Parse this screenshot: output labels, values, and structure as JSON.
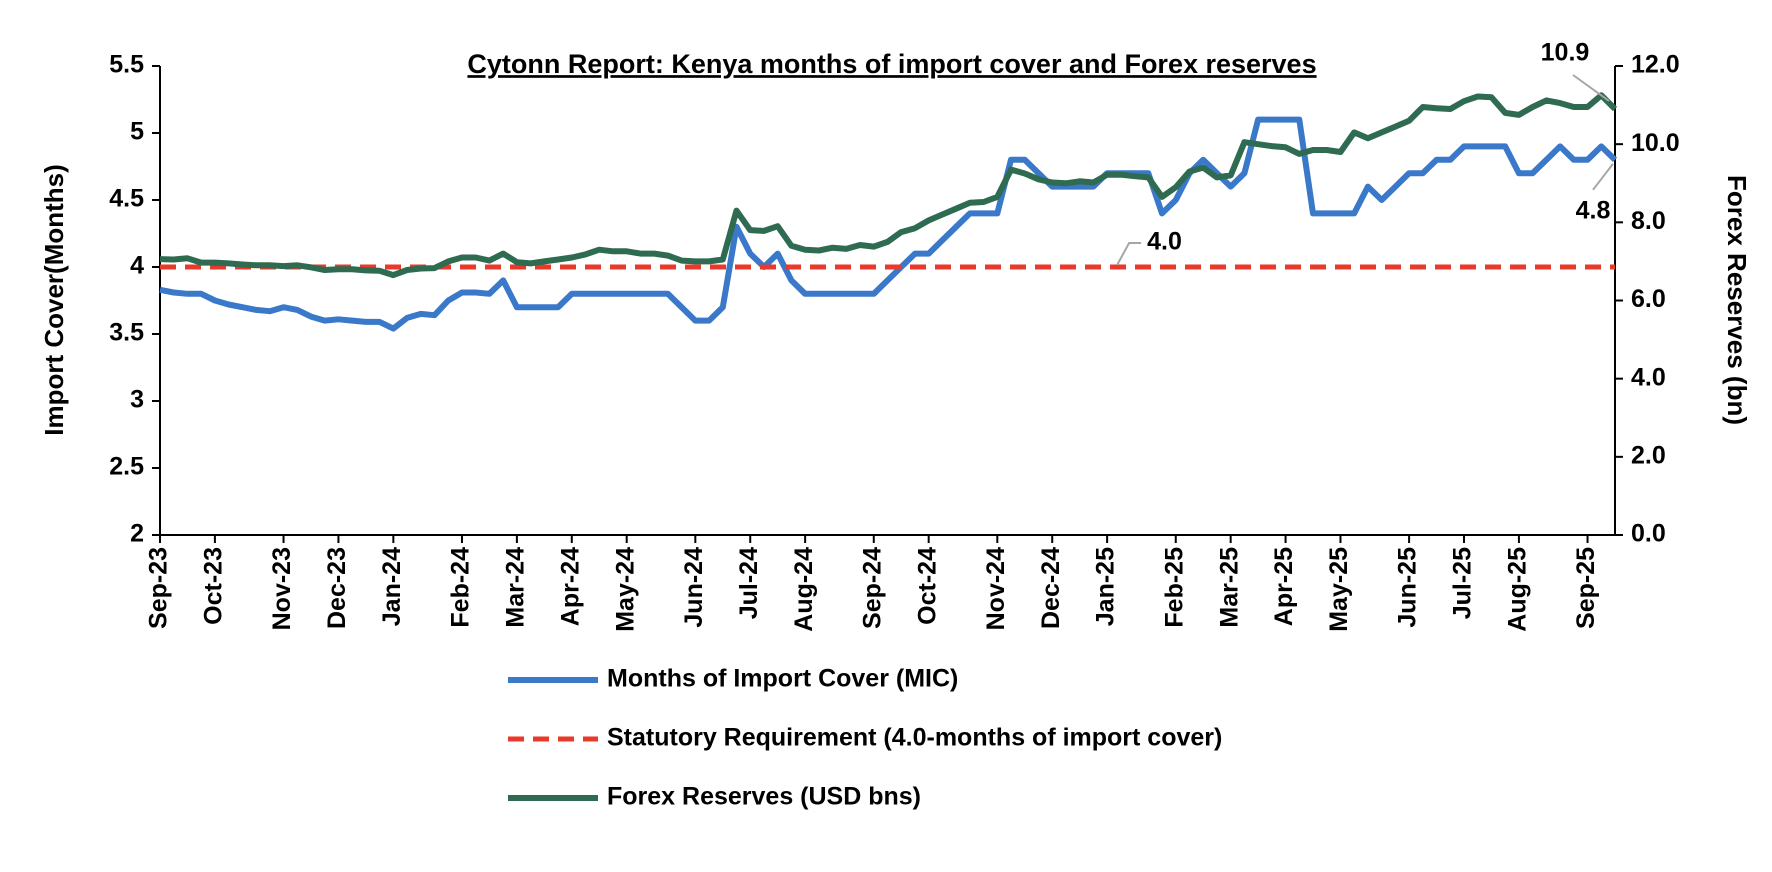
{
  "chart_data": {
    "type": "line",
    "title": "Cytonn Report: Kenya months of import cover and Forex reserves",
    "y_label": "Import Cover(Months)",
    "y2_label": "Forex Reserves (bn)",
    "categories": [
      "Sep-23",
      null,
      null,
      null,
      "Oct-23",
      null,
      null,
      null,
      null,
      "Nov-23",
      null,
      null,
      null,
      "Dec-23",
      null,
      null,
      null,
      "Jan-24",
      null,
      null,
      null,
      null,
      "Feb-24",
      null,
      null,
      null,
      "Mar-24",
      null,
      null,
      null,
      "Apr-24",
      null,
      null,
      null,
      "May-24",
      null,
      null,
      null,
      null,
      "Jun-24",
      null,
      null,
      null,
      "Jul-24",
      null,
      null,
      null,
      "Aug-24",
      null,
      null,
      null,
      null,
      "Sep-24",
      null,
      null,
      null,
      "Oct-24",
      null,
      null,
      null,
      null,
      "Nov-24",
      null,
      null,
      null,
      "Dec-24",
      null,
      null,
      null,
      "Jan-25",
      null,
      null,
      null,
      null,
      "Feb-25",
      null,
      null,
      null,
      "Mar-25",
      null,
      null,
      null,
      "Apr-25",
      null,
      null,
      null,
      "May-25",
      null,
      null,
      null,
      null,
      "Jun-25",
      null,
      null,
      null,
      "Jul-25",
      null,
      null,
      null,
      "Aug-25",
      null,
      null,
      null,
      null,
      "Sep-25",
      null,
      null
    ],
    "series": [
      {
        "name": "Months of Import Cover (MIC)",
        "color": "#3a78c9",
        "axis": "y",
        "values": [
          3.83,
          3.81,
          3.8,
          3.8,
          3.75,
          3.72,
          3.7,
          3.68,
          3.67,
          3.7,
          3.68,
          3.63,
          3.6,
          3.61,
          3.6,
          3.59,
          3.59,
          3.54,
          3.62,
          3.65,
          3.64,
          3.75,
          3.81,
          3.81,
          3.8,
          3.9,
          3.7,
          3.7,
          3.7,
          3.7,
          3.8,
          3.8,
          3.8,
          3.8,
          3.8,
          3.8,
          3.8,
          3.8,
          3.7,
          3.6,
          3.6,
          3.7,
          4.3,
          4.1,
          4.0,
          4.1,
          3.9,
          3.8,
          3.8,
          3.8,
          3.8,
          3.8,
          3.8,
          3.9,
          4.0,
          4.1,
          4.1,
          4.2,
          4.3,
          4.4,
          4.4,
          4.4,
          4.8,
          4.8,
          4.7,
          4.6,
          4.6,
          4.6,
          4.6,
          4.7,
          4.7,
          4.7,
          4.7,
          4.4,
          4.5,
          4.7,
          4.8,
          4.7,
          4.6,
          4.7,
          5.1,
          5.1,
          5.1,
          5.1,
          4.4,
          4.4,
          4.4,
          4.4,
          4.6,
          4.5,
          4.6,
          4.7,
          4.7,
          4.8,
          4.8,
          4.9,
          4.9,
          4.9,
          4.9,
          4.7,
          4.7,
          4.8,
          4.9,
          4.8,
          4.8,
          4.9,
          4.8
        ]
      },
      {
        "name": "Statutory Requirement (4.0-months of import cover)",
        "color": "#e8392a",
        "axis": "y",
        "line_style": "dashed",
        "values": [
          4,
          4,
          4,
          4,
          4,
          4,
          4,
          4,
          4,
          4,
          4,
          4,
          4,
          4,
          4,
          4,
          4,
          4,
          4,
          4,
          4,
          4,
          4,
          4,
          4,
          4,
          4,
          4,
          4,
          4,
          4,
          4,
          4,
          4,
          4,
          4,
          4,
          4,
          4,
          4,
          4,
          4,
          4,
          4,
          4,
          4,
          4,
          4,
          4,
          4,
          4,
          4,
          4,
          4,
          4,
          4,
          4,
          4,
          4,
          4,
          4,
          4,
          4,
          4,
          4,
          4,
          4,
          4,
          4,
          4,
          4,
          4,
          4,
          4,
          4,
          4,
          4,
          4,
          4,
          4,
          4,
          4,
          4,
          4,
          4,
          4,
          4,
          4,
          4,
          4,
          4,
          4,
          4,
          4,
          4,
          4,
          4,
          4,
          4,
          4,
          4,
          4,
          4,
          4,
          4,
          4,
          4
        ],
        "value_labels": [
          null,
          null,
          null,
          null,
          null,
          null,
          null,
          null,
          null,
          null,
          null,
          null,
          null,
          null,
          null,
          null,
          null,
          null,
          null,
          null,
          null,
          null,
          null,
          null,
          null,
          null,
          null,
          null,
          null,
          null,
          null,
          null,
          null,
          null,
          null,
          null,
          null,
          null,
          null,
          null,
          null,
          null,
          null,
          null,
          null,
          null,
          null,
          null,
          null,
          null,
          null,
          null,
          null,
          null,
          null,
          null,
          null,
          null,
          null,
          null,
          null,
          null,
          null,
          null,
          null,
          null,
          null,
          null,
          null,
          "4.0",
          null,
          null,
          null,
          null,
          null,
          null,
          null,
          null,
          null,
          null,
          null,
          null,
          null,
          null,
          null,
          null,
          null,
          null,
          null,
          null,
          null,
          null,
          null,
          null,
          null,
          null,
          null,
          null,
          null,
          null,
          null,
          null,
          null,
          null,
          null,
          null,
          null
        ]
      },
      {
        "name": "Forex Reserves (USD bns)",
        "color": "#2e6b50",
        "axis": "y2",
        "values": [
          7.06,
          7.05,
          7.08,
          6.97,
          6.97,
          6.95,
          6.92,
          6.9,
          6.9,
          6.88,
          6.9,
          6.85,
          6.78,
          6.8,
          6.8,
          6.77,
          6.76,
          6.65,
          6.78,
          6.82,
          6.83,
          7.0,
          7.1,
          7.1,
          7.02,
          7.2,
          6.98,
          6.95,
          7.0,
          7.05,
          7.1,
          7.18,
          7.3,
          7.26,
          7.26,
          7.2,
          7.2,
          7.15,
          7.02,
          7.0,
          7.0,
          7.05,
          8.3,
          7.8,
          7.78,
          7.9,
          7.4,
          7.3,
          7.28,
          7.35,
          7.32,
          7.42,
          7.38,
          7.5,
          7.75,
          7.85,
          8.05,
          8.2,
          8.35,
          8.5,
          8.52,
          8.65,
          9.35,
          9.25,
          9.1,
          9.02,
          9.0,
          9.05,
          9.02,
          9.22,
          9.22,
          9.18,
          9.15,
          8.65,
          8.9,
          9.3,
          9.4,
          9.15,
          9.2,
          10.05,
          10.0,
          9.95,
          9.92,
          9.75,
          9.85,
          9.85,
          9.8,
          10.3,
          10.15,
          10.3,
          10.45,
          10.6,
          10.95,
          10.92,
          10.9,
          11.1,
          11.22,
          11.2,
          10.8,
          10.75,
          10.95,
          11.12,
          11.05,
          10.95,
          10.95,
          11.25,
          10.9
        ]
      }
    ],
    "ylim": [
      2,
      5.5
    ],
    "yticks": [
      2,
      2.5,
      3,
      3.5,
      4,
      4.5,
      5,
      5.5
    ],
    "y2lim": [
      0,
      12
    ],
    "y2ticks": [
      {
        "value": 0,
        "label": "0.0"
      },
      {
        "value": 2,
        "label": "2.0"
      },
      {
        "value": 4,
        "label": "4.0"
      },
      {
        "value": 6,
        "label": "6.0"
      },
      {
        "value": 8,
        "label": "8.0"
      },
      {
        "value": 10,
        "label": "10.0"
      },
      {
        "value": 12,
        "label": "12.0"
      }
    ],
    "grid": false,
    "legend": "bottom"
  }
}
